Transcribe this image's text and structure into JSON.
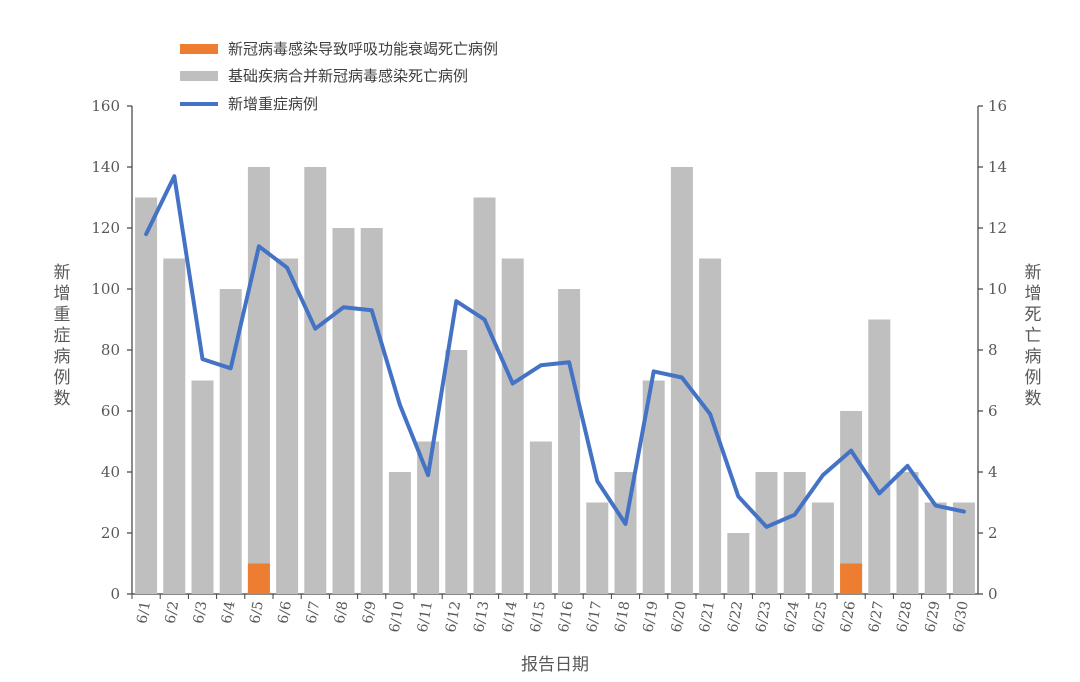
{
  "chart_data": {
    "type": "bar",
    "categories": [
      "6/1",
      "6/2",
      "6/3",
      "6/4",
      "6/5",
      "6/6",
      "6/7",
      "6/8",
      "6/9",
      "6/10",
      "6/11",
      "6/12",
      "6/13",
      "6/14",
      "6/15",
      "6/16",
      "6/17",
      "6/18",
      "6/19",
      "6/20",
      "6/21",
      "6/22",
      "6/23",
      "6/24",
      "6/25",
      "6/26",
      "6/27",
      "6/28",
      "6/29",
      "6/30"
    ],
    "xlabel": "报告日期",
    "ylabel_left": "新增重症病例数",
    "ylabel_right": "新增死亡病例数",
    "ylim_left": [
      0,
      160
    ],
    "ylim_right": [
      0,
      16
    ],
    "yticks_left": [
      "0",
      "20",
      "40",
      "60",
      "80",
      "100",
      "120",
      "140",
      "160"
    ],
    "yticks_right": [
      "0",
      "2",
      "4",
      "6",
      "8",
      "10",
      "12",
      "14",
      "16"
    ],
    "grid": false,
    "legend_position": "top-left",
    "series": [
      {
        "name": "新冠病毒感染导致呼吸功能衰竭死亡病例",
        "kind": "bar",
        "axis": "right",
        "color": "#ED7D31",
        "values": [
          0,
          0,
          0,
          0,
          1,
          0,
          0,
          0,
          0,
          0,
          0,
          0,
          0,
          0,
          0,
          0,
          0,
          0,
          0,
          0,
          0,
          0,
          0,
          0,
          0,
          1,
          0,
          0,
          0,
          0
        ]
      },
      {
        "name": "基础疾病合并新冠病毒感染死亡病例",
        "kind": "bar",
        "axis": "right",
        "color": "#BFBFBF",
        "values": [
          13,
          11,
          7,
          10,
          14,
          11,
          14,
          12,
          12,
          4,
          5,
          8,
          13,
          11,
          5,
          10,
          3,
          4,
          7,
          14,
          11,
          2,
          4,
          4,
          3,
          6,
          9,
          4,
          3,
          3
        ]
      },
      {
        "name": "新增重症病例",
        "kind": "line",
        "axis": "left",
        "color": "#4472C4",
        "values": [
          118,
          137,
          77,
          74,
          114,
          107,
          87,
          94,
          93,
          62,
          39,
          96,
          90,
          69,
          75,
          76,
          37,
          23,
          73,
          71,
          59,
          32,
          22,
          26,
          39,
          47,
          33,
          42,
          29,
          27
        ]
      }
    ]
  }
}
